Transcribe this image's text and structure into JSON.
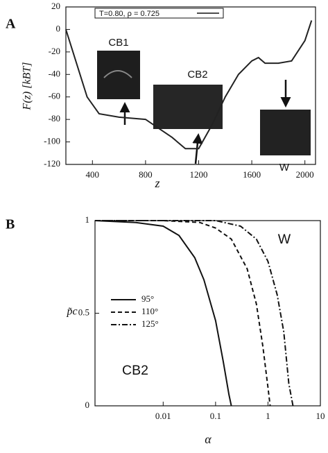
{
  "chart_data": [
    {
      "type": "line",
      "label": "A",
      "legend": "T=0.80, ρ = 0.725",
      "xlabel": "z",
      "ylabel": "F(z)  [kBT]",
      "x": [
        200,
        280,
        360,
        450,
        600,
        700,
        800,
        900,
        1000,
        1100,
        1200,
        1300,
        1400,
        1500,
        1600,
        1650,
        1700,
        1800,
        1900,
        2000,
        2050
      ],
      "series": [
        {
          "color": "#222222",
          "values": [
            0,
            -30,
            -60,
            -75,
            -78,
            -79,
            -80,
            -88,
            -96,
            -106,
            -106,
            -85,
            -60,
            -40,
            -28,
            -25,
            -30,
            -30,
            -28,
            -10,
            8
          ]
        }
      ],
      "xlim": [
        200,
        2080
      ],
      "xticks": [
        400,
        800,
        1200,
        1600,
        2000
      ],
      "ylim": [
        -120,
        20
      ],
      "yticks": [
        20,
        0,
        -20,
        -40,
        -60,
        -80,
        -100,
        -120
      ],
      "annotations": [
        "CB1",
        "CB2",
        "W"
      ]
    },
    {
      "type": "line",
      "label": "B",
      "xlabel": "α",
      "ylabel": "p̃c",
      "xscale": "log",
      "series": [
        {
          "name": "95°",
          "color": "#111111",
          "dash": "solid",
          "x": [
            0.0005,
            0.003,
            0.01,
            0.02,
            0.04,
            0.06,
            0.1,
            0.14,
            0.18,
            0.2
          ],
          "values": [
            1,
            0.99,
            0.97,
            0.92,
            0.8,
            0.68,
            0.46,
            0.24,
            0.06,
            0
          ]
        },
        {
          "name": "110°",
          "color": "#111111",
          "dash": "dashed",
          "x": [
            0.0005,
            0.01,
            0.05,
            0.1,
            0.2,
            0.4,
            0.6,
            0.8,
            1,
            1.1
          ],
          "values": [
            1,
            1,
            0.99,
            0.96,
            0.9,
            0.74,
            0.55,
            0.32,
            0.1,
            0
          ]
        },
        {
          "name": "125°",
          "color": "#111111",
          "dash": "dashdot",
          "x": [
            0.0005,
            0.01,
            0.1,
            0.3,
            0.6,
            1,
            1.5,
            2,
            2.5,
            3
          ],
          "values": [
            1,
            1,
            1,
            0.97,
            0.9,
            0.78,
            0.6,
            0.4,
            0.12,
            0
          ]
        }
      ],
      "xlim": [
        0.0005,
        10
      ],
      "xticks": [
        0.01,
        0.1,
        1,
        10
      ],
      "ylim": [
        0,
        1
      ],
      "yticks": [
        0,
        0.5,
        1
      ],
      "annotations": [
        "W",
        "CB2"
      ]
    }
  ]
}
